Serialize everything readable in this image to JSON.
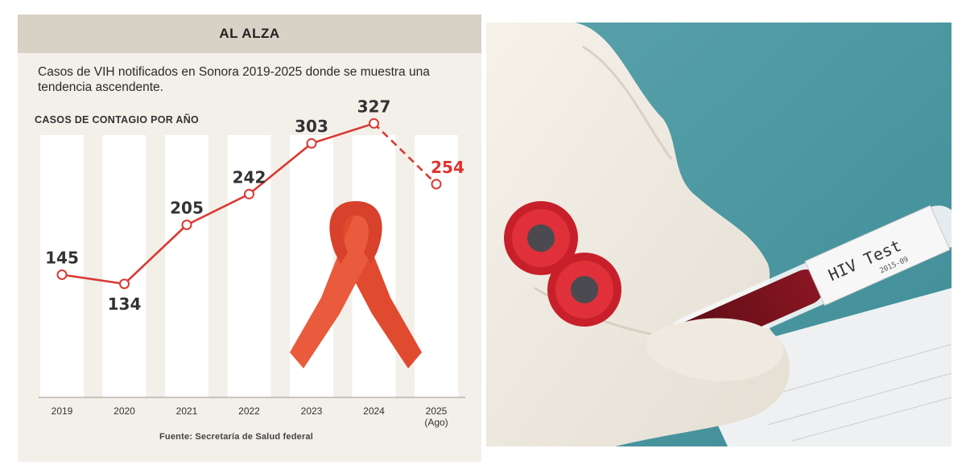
{
  "infographic": {
    "banner": "AL ALZA",
    "subtitle": "Casos de VIH notificados en Sonora 2019-2025 donde se muestra una tendencia ascendente.",
    "section_label": "CASOS DE CONTAGIO POR AÑO",
    "source": "Fuente: Secretaría de Salud federal"
  },
  "chart_data": {
    "type": "line",
    "title": "CASOS DE CONTAGIO POR AÑO",
    "categories": [
      "2019",
      "2020",
      "2021",
      "2022",
      "2023",
      "2024",
      "2025"
    ],
    "category_notes": {
      "2025": "(Ago)"
    },
    "values": [
      145,
      134,
      205,
      242,
      303,
      327,
      254
    ],
    "ylim": [
      100,
      340
    ],
    "grid": false,
    "highlight": {
      "index": 6,
      "color": "#e1312d",
      "segment_style": "dashed"
    },
    "line_color": "#d93a34",
    "marker": "hollow-circle"
  },
  "photo": {
    "tube_label": "HIV Test",
    "tube_sublabel": "2015-09",
    "ribbon_color": "#e3452f"
  }
}
